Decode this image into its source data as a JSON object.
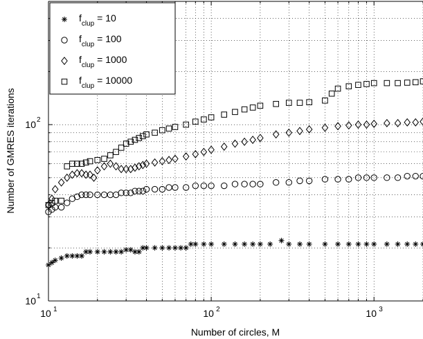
{
  "chart_data": {
    "type": "scatter",
    "title": "",
    "xlabel": "Number of circles, M",
    "ylabel": "Number of GMRES iterations",
    "xscale": "log",
    "yscale": "log",
    "xlim": [
      10,
      2000
    ],
    "ylim": [
      10,
      500
    ],
    "grid": "dotted, major and minor",
    "legend_position": "top-left",
    "x_ticks": [
      {
        "base": "10",
        "exp": "1",
        "value": 10
      },
      {
        "base": "10",
        "exp": "2",
        "value": 100
      },
      {
        "base": "10",
        "exp": "3",
        "value": 1000
      }
    ],
    "y_ticks": [
      {
        "base": "10",
        "exp": "1",
        "value": 10
      },
      {
        "base": "10",
        "exp": "2",
        "value": 100
      }
    ],
    "series": [
      {
        "name": "f_clup = 10",
        "legend_main": "f",
        "legend_sub": "clup",
        "legend_rest": " = 10",
        "marker": "asterisk",
        "points": [
          [
            10,
            16
          ],
          [
            10.5,
            16.5
          ],
          [
            11,
            17
          ],
          [
            12,
            17.5
          ],
          [
            13,
            18
          ],
          [
            14,
            18
          ],
          [
            15,
            18
          ],
          [
            16,
            18
          ],
          [
            17,
            19
          ],
          [
            18,
            19
          ],
          [
            20,
            19
          ],
          [
            22,
            19
          ],
          [
            24,
            19
          ],
          [
            26,
            19
          ],
          [
            28,
            19
          ],
          [
            30,
            19.5
          ],
          [
            32,
            19.5
          ],
          [
            34,
            19
          ],
          [
            36,
            19
          ],
          [
            38,
            20
          ],
          [
            40,
            20
          ],
          [
            45,
            20
          ],
          [
            50,
            20
          ],
          [
            55,
            20
          ],
          [
            60,
            20
          ],
          [
            65,
            20
          ],
          [
            70,
            20
          ],
          [
            75,
            21
          ],
          [
            80,
            21
          ],
          [
            90,
            21
          ],
          [
            100,
            21
          ],
          [
            120,
            21
          ],
          [
            140,
            21
          ],
          [
            160,
            21
          ],
          [
            180,
            21
          ],
          [
            200,
            21
          ],
          [
            230,
            21
          ],
          [
            270,
            22
          ],
          [
            300,
            21
          ],
          [
            350,
            21
          ],
          [
            400,
            21
          ],
          [
            500,
            21
          ],
          [
            600,
            21
          ],
          [
            700,
            21
          ],
          [
            800,
            21
          ],
          [
            900,
            21
          ],
          [
            1000,
            21
          ],
          [
            1200,
            21
          ],
          [
            1400,
            21
          ],
          [
            1600,
            21
          ],
          [
            1800,
            21
          ],
          [
            2000,
            21
          ]
        ]
      },
      {
        "name": "f_clup = 100",
        "legend_main": "f",
        "legend_sub": "clup",
        "legend_rest": " = 100",
        "marker": "circle",
        "points": [
          [
            10,
            32
          ],
          [
            10.5,
            33
          ],
          [
            11,
            34
          ],
          [
            12,
            34
          ],
          [
            13,
            36
          ],
          [
            14,
            38
          ],
          [
            15,
            39
          ],
          [
            16,
            40
          ],
          [
            17,
            40
          ],
          [
            18,
            40
          ],
          [
            20,
            40
          ],
          [
            22,
            40
          ],
          [
            24,
            40
          ],
          [
            26,
            40
          ],
          [
            28,
            41
          ],
          [
            30,
            41
          ],
          [
            32,
            41
          ],
          [
            34,
            42
          ],
          [
            36,
            42
          ],
          [
            38,
            42
          ],
          [
            40,
            43
          ],
          [
            45,
            43
          ],
          [
            50,
            43
          ],
          [
            55,
            44
          ],
          [
            60,
            44
          ],
          [
            70,
            44
          ],
          [
            80,
            45
          ],
          [
            90,
            45
          ],
          [
            100,
            45
          ],
          [
            120,
            45
          ],
          [
            140,
            46
          ],
          [
            160,
            46
          ],
          [
            180,
            46
          ],
          [
            200,
            46
          ],
          [
            250,
            47
          ],
          [
            300,
            47
          ],
          [
            350,
            48
          ],
          [
            400,
            48
          ],
          [
            500,
            49
          ],
          [
            600,
            49
          ],
          [
            700,
            49
          ],
          [
            800,
            50
          ],
          [
            900,
            50
          ],
          [
            1000,
            50
          ],
          [
            1200,
            50
          ],
          [
            1400,
            50
          ],
          [
            1600,
            51
          ],
          [
            1800,
            51
          ],
          [
            2000,
            51
          ]
        ]
      },
      {
        "name": "f_clup = 1000",
        "legend_main": "f",
        "legend_sub": "clup",
        "legend_rest": " = 1000",
        "marker": "diamond",
        "points": [
          [
            10,
            35
          ],
          [
            10.5,
            38
          ],
          [
            11,
            43
          ],
          [
            12,
            47
          ],
          [
            13,
            50
          ],
          [
            14,
            52
          ],
          [
            15,
            53
          ],
          [
            16,
            53
          ],
          [
            17,
            52
          ],
          [
            18,
            52
          ],
          [
            19,
            50
          ],
          [
            20,
            55
          ],
          [
            22,
            58
          ],
          [
            24,
            60
          ],
          [
            26,
            58
          ],
          [
            28,
            56
          ],
          [
            30,
            56
          ],
          [
            32,
            56
          ],
          [
            34,
            57
          ],
          [
            36,
            58
          ],
          [
            38,
            59
          ],
          [
            40,
            60
          ],
          [
            45,
            61
          ],
          [
            50,
            62
          ],
          [
            55,
            63
          ],
          [
            60,
            64
          ],
          [
            70,
            66
          ],
          [
            80,
            68
          ],
          [
            90,
            70
          ],
          [
            100,
            72
          ],
          [
            120,
            75
          ],
          [
            140,
            78
          ],
          [
            160,
            80
          ],
          [
            180,
            82
          ],
          [
            200,
            84
          ],
          [
            250,
            88
          ],
          [
            300,
            90
          ],
          [
            350,
            92
          ],
          [
            400,
            94
          ],
          [
            500,
            96
          ],
          [
            600,
            98
          ],
          [
            700,
            99
          ],
          [
            800,
            100
          ],
          [
            900,
            100
          ],
          [
            1000,
            101
          ],
          [
            1200,
            102
          ],
          [
            1400,
            102
          ],
          [
            1600,
            103
          ],
          [
            1800,
            103
          ],
          [
            2000,
            104
          ]
        ]
      },
      {
        "name": "f_clup = 10000",
        "legend_main": "f",
        "legend_sub": "clup",
        "legend_rest": " = 10000",
        "marker": "square",
        "points": [
          [
            10,
            35
          ],
          [
            10.5,
            36
          ],
          [
            11,
            37
          ],
          [
            12,
            37
          ],
          [
            13,
            58
          ],
          [
            14,
            60
          ],
          [
            15,
            60
          ],
          [
            16,
            60
          ],
          [
            17,
            61
          ],
          [
            18,
            62
          ],
          [
            20,
            63
          ],
          [
            22,
            64
          ],
          [
            24,
            67
          ],
          [
            26,
            70
          ],
          [
            28,
            74
          ],
          [
            30,
            78
          ],
          [
            32,
            80
          ],
          [
            34,
            82
          ],
          [
            36,
            84
          ],
          [
            38,
            86
          ],
          [
            40,
            88
          ],
          [
            45,
            90
          ],
          [
            50,
            93
          ],
          [
            55,
            95
          ],
          [
            60,
            97
          ],
          [
            70,
            100
          ],
          [
            80,
            104
          ],
          [
            90,
            107
          ],
          [
            100,
            110
          ],
          [
            120,
            114
          ],
          [
            140,
            118
          ],
          [
            160,
            122
          ],
          [
            180,
            125
          ],
          [
            200,
            128
          ],
          [
            250,
            131
          ],
          [
            300,
            133
          ],
          [
            350,
            133
          ],
          [
            400,
            134
          ],
          [
            500,
            137
          ],
          [
            550,
            150
          ],
          [
            600,
            160
          ],
          [
            700,
            165
          ],
          [
            800,
            168
          ],
          [
            900,
            170
          ],
          [
            1000,
            172
          ],
          [
            1200,
            172
          ],
          [
            1400,
            172
          ],
          [
            1600,
            173
          ],
          [
            1800,
            174
          ],
          [
            2000,
            176
          ]
        ]
      }
    ]
  }
}
